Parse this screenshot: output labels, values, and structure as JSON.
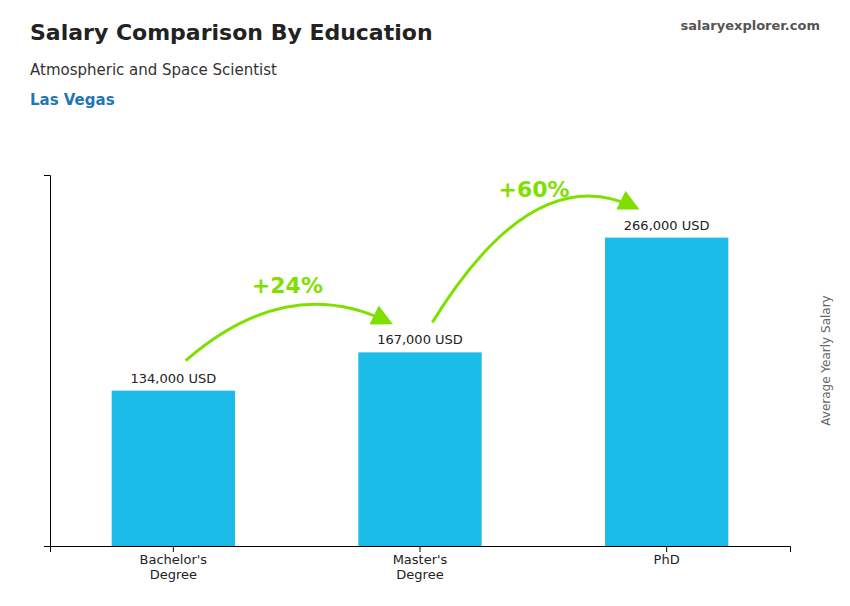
{
  "chart_data": {
    "type": "bar",
    "title": "Salary Comparison By Education",
    "subtitle": "Atmospheric and Space Scientist",
    "location": "Las Vegas",
    "source": "salaryexplorer.com",
    "ylabel": "Average Yearly Salary",
    "categories": [
      "Bachelor's\nDegree",
      "Master's\nDegree",
      "PhD"
    ],
    "values": [
      134000,
      167000,
      266000
    ],
    "value_labels": [
      "134,000 USD",
      "167,000 USD",
      "266,000 USD"
    ],
    "data_labels": true,
    "color": "#1BBDE8",
    "annotations": [
      {
        "text": "+24%",
        "color": "#7FE000"
      },
      {
        "text": "+60%",
        "color": "#7FE000"
      }
    ],
    "ylim": [
      0,
      320000
    ],
    "yticks": [],
    "tick_labels": "x",
    "grid": false
  }
}
